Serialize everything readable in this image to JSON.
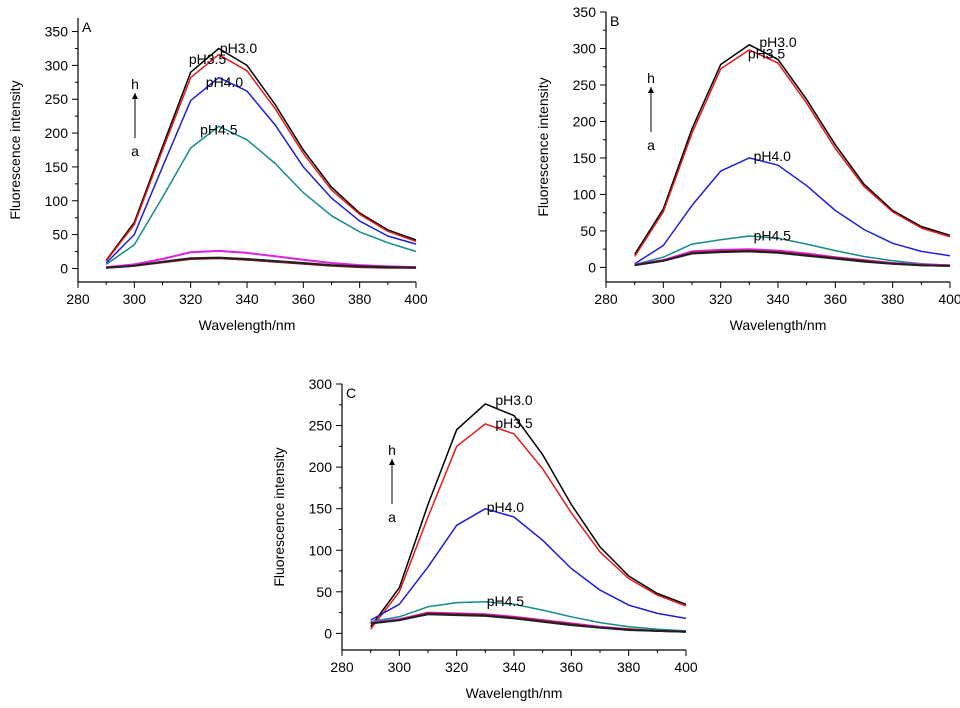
{
  "panel_labels": [
    "A",
    "B",
    "C"
  ],
  "arrow": {
    "top": "h",
    "bottom": "a"
  },
  "chart_data": [
    {
      "type": "line",
      "panel": "A",
      "xlabel": "Wavelength/nm",
      "ylabel": "Fluorescence intensity",
      "xlim": [
        280,
        400
      ],
      "ylim": [
        -20,
        370
      ],
      "xticks": [
        280,
        300,
        320,
        340,
        360,
        380,
        400
      ],
      "yticks": [
        0,
        50,
        100,
        150,
        200,
        250,
        300,
        350
      ],
      "annotations": [
        {
          "text": "pH3.0",
          "x": 337,
          "y": 318
        },
        {
          "text": "pH3.5",
          "x": 326,
          "y": 302
        },
        {
          "text": "pH4.0",
          "x": 332,
          "y": 268
        },
        {
          "text": "pH4.5",
          "x": 330,
          "y": 198
        }
      ],
      "series": [
        {
          "color": "#000000",
          "x": [
            290,
            300,
            310,
            320,
            330,
            340,
            350,
            360,
            370,
            380,
            390,
            400
          ],
          "y": [
            12,
            68,
            180,
            290,
            325,
            300,
            242,
            175,
            120,
            82,
            57,
            42
          ]
        },
        {
          "color": "#e41a1c",
          "x": [
            290,
            300,
            310,
            320,
            330,
            340,
            350,
            360,
            370,
            380,
            390,
            400
          ],
          "y": [
            11,
            65,
            175,
            282,
            316,
            292,
            236,
            170,
            116,
            80,
            55,
            40
          ]
        },
        {
          "color": "#1f1fd6",
          "x": [
            290,
            300,
            310,
            320,
            330,
            340,
            350,
            360,
            370,
            380,
            390,
            400
          ],
          "y": [
            8,
            50,
            150,
            248,
            282,
            262,
            212,
            150,
            104,
            70,
            48,
            36
          ]
        },
        {
          "color": "#158a8a",
          "x": [
            290,
            300,
            310,
            320,
            330,
            340,
            350,
            360,
            370,
            380,
            390,
            400
          ],
          "y": [
            6,
            35,
            105,
            178,
            210,
            190,
            155,
            112,
            78,
            54,
            38,
            25
          ]
        },
        {
          "color": "#e020e0",
          "x": [
            290,
            300,
            310,
            320,
            330,
            340,
            350,
            360,
            370,
            380,
            390,
            400
          ],
          "y": [
            2,
            6,
            14,
            24,
            26,
            23,
            18,
            13,
            8,
            5,
            3,
            2
          ]
        },
        {
          "color": "#8b1a1a",
          "x": [
            290,
            300,
            310,
            320,
            330,
            340,
            350,
            360,
            370,
            380,
            390,
            400
          ],
          "y": [
            1,
            4,
            9,
            14,
            15,
            13,
            10,
            7,
            4,
            2,
            1,
            1
          ]
        },
        {
          "color": "#202020",
          "x": [
            290,
            300,
            310,
            320,
            330,
            340,
            350,
            360,
            370,
            380,
            390,
            400
          ],
          "y": [
            1,
            4,
            10,
            15,
            16,
            14,
            11,
            8,
            5,
            3,
            2,
            1
          ]
        }
      ]
    },
    {
      "type": "line",
      "panel": "B",
      "xlabel": "Wavelength/nm",
      "ylabel": "Fluorescence intensity",
      "xlim": [
        280,
        400
      ],
      "ylim": [
        -20,
        350
      ],
      "xticks": [
        280,
        300,
        320,
        340,
        360,
        380,
        400
      ],
      "yticks": [
        0,
        50,
        100,
        150,
        200,
        250,
        300,
        350
      ],
      "annotations": [
        {
          "text": "pH3.0",
          "x": 340,
          "y": 302
        },
        {
          "text": "pH3.5",
          "x": 336,
          "y": 286
        },
        {
          "text": "pH4.0",
          "x": 338,
          "y": 146
        },
        {
          "text": "pH4.5",
          "x": 338,
          "y": 37
        }
      ],
      "series": [
        {
          "color": "#000000",
          "x": [
            290,
            300,
            310,
            320,
            330,
            340,
            350,
            360,
            370,
            380,
            390,
            400
          ],
          "y": [
            18,
            80,
            190,
            278,
            305,
            285,
            230,
            168,
            114,
            78,
            56,
            44
          ]
        },
        {
          "color": "#e41a1c",
          "x": [
            290,
            300,
            310,
            320,
            330,
            340,
            350,
            360,
            370,
            380,
            390,
            400
          ],
          "y": [
            15,
            76,
            184,
            272,
            298,
            280,
            225,
            163,
            111,
            76,
            54,
            42
          ]
        },
        {
          "color": "#1f1fd6",
          "x": [
            290,
            300,
            310,
            320,
            330,
            340,
            350,
            360,
            370,
            380,
            390,
            400
          ],
          "y": [
            5,
            30,
            85,
            132,
            150,
            140,
            112,
            78,
            52,
            33,
            22,
            16
          ]
        },
        {
          "color": "#158a8a",
          "x": [
            290,
            300,
            310,
            320,
            330,
            340,
            350,
            360,
            370,
            380,
            390,
            400
          ],
          "y": [
            4,
            14,
            32,
            38,
            43,
            40,
            32,
            23,
            15,
            9,
            5,
            3
          ]
        },
        {
          "color": "#e020e0",
          "x": [
            290,
            300,
            310,
            320,
            330,
            340,
            350,
            360,
            370,
            380,
            390,
            400
          ],
          "y": [
            4,
            10,
            22,
            24,
            25,
            23,
            19,
            14,
            10,
            6,
            4,
            3
          ]
        },
        {
          "color": "#8b1a1a",
          "x": [
            290,
            300,
            310,
            320,
            330,
            340,
            350,
            360,
            370,
            380,
            390,
            400
          ],
          "y": [
            3,
            9,
            20,
            22,
            23,
            21,
            17,
            13,
            9,
            5,
            3,
            2
          ]
        },
        {
          "color": "#202020",
          "x": [
            290,
            300,
            310,
            320,
            330,
            340,
            350,
            360,
            370,
            380,
            390,
            400
          ],
          "y": [
            3,
            9,
            19,
            21,
            22,
            20,
            16,
            12,
            8,
            5,
            3,
            2
          ]
        }
      ]
    },
    {
      "type": "line",
      "panel": "C",
      "xlabel": "Wavelength/nm",
      "ylabel": "Fluorescence intensity",
      "xlim": [
        280,
        400
      ],
      "ylim": [
        -20,
        300
      ],
      "xticks": [
        280,
        300,
        320,
        340,
        360,
        380,
        400
      ],
      "yticks": [
        0,
        50,
        100,
        150,
        200,
        250,
        300
      ],
      "annotations": [
        {
          "text": "pH3.0",
          "x": 340,
          "y": 275
        },
        {
          "text": "pH3.5",
          "x": 340,
          "y": 247
        },
        {
          "text": "pH4.0",
          "x": 337,
          "y": 146
        },
        {
          "text": "pH4.5",
          "x": 337,
          "y": 33
        }
      ],
      "series": [
        {
          "color": "#000000",
          "x": [
            290,
            300,
            310,
            320,
            330,
            340,
            350,
            360,
            370,
            380,
            390,
            400
          ],
          "y": [
            8,
            55,
            155,
            245,
            276,
            262,
            215,
            155,
            104,
            69,
            48,
            35
          ]
        },
        {
          "color": "#e41a1c",
          "x": [
            290,
            300,
            310,
            320,
            330,
            340,
            350,
            360,
            370,
            380,
            390,
            400
          ],
          "y": [
            5,
            50,
            140,
            225,
            252,
            240,
            198,
            145,
            98,
            66,
            46,
            33
          ]
        },
        {
          "color": "#1f1fd6",
          "x": [
            290,
            300,
            310,
            320,
            330,
            340,
            350,
            360,
            370,
            380,
            390,
            400
          ],
          "y": [
            16,
            35,
            80,
            130,
            150,
            140,
            112,
            78,
            52,
            34,
            24,
            18
          ]
        },
        {
          "color": "#158a8a",
          "x": [
            290,
            300,
            310,
            320,
            330,
            340,
            350,
            360,
            370,
            380,
            390,
            400
          ],
          "y": [
            14,
            20,
            32,
            37,
            38,
            35,
            28,
            20,
            13,
            8,
            5,
            3
          ]
        },
        {
          "color": "#e020e0",
          "x": [
            290,
            300,
            310,
            320,
            330,
            340,
            350,
            360,
            370,
            380,
            390,
            400
          ],
          "y": [
            13,
            17,
            25,
            24,
            23,
            20,
            16,
            12,
            8,
            5,
            3,
            2
          ]
        },
        {
          "color": "#8b1a1a",
          "x": [
            290,
            300,
            310,
            320,
            330,
            340,
            350,
            360,
            370,
            380,
            390,
            400
          ],
          "y": [
            12,
            16,
            24,
            23,
            22,
            19,
            15,
            11,
            7,
            5,
            3,
            2
          ]
        },
        {
          "color": "#202020",
          "x": [
            290,
            300,
            310,
            320,
            330,
            340,
            350,
            360,
            370,
            380,
            390,
            400
          ],
          "y": [
            12,
            16,
            23,
            22,
            21,
            18,
            14,
            10,
            7,
            4,
            3,
            2
          ]
        }
      ]
    }
  ]
}
